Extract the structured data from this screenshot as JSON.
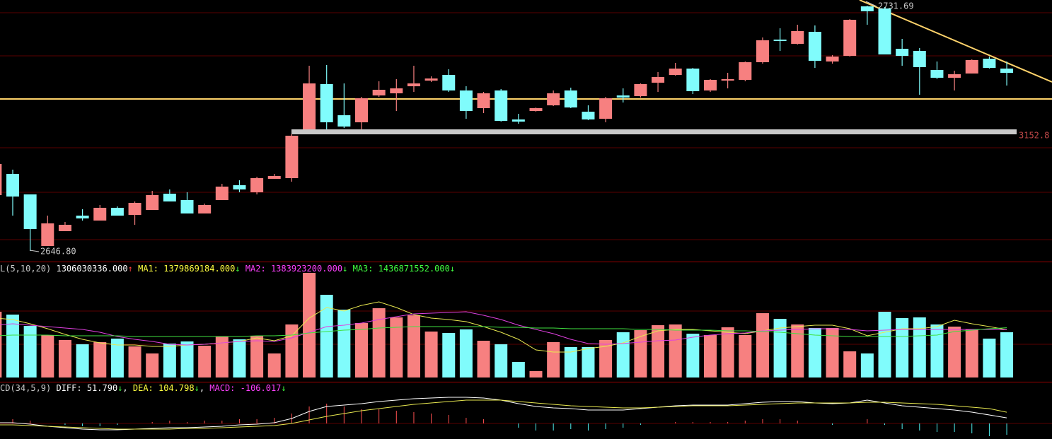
{
  "chart_data": [
    {
      "type": "candlestick",
      "up_color": "#f78080",
      "down_color": "#80fcfc",
      "ylim": [
        2643.13,
        2733.65
      ],
      "open": [
        2666.13,
        2673.47,
        2666.37,
        2648.52,
        2653.65,
        2659.03,
        2657.32,
        2661.73,
        2659.28,
        2660.99,
        2666.62,
        2664.42,
        2659.77,
        2664.42,
        2669.55,
        2667.11,
        2671.76,
        2672.0,
        2688.88,
        2704.54,
        2693.77,
        2691.33,
        2700.62,
        2701.36,
        2703.8,
        2705.76,
        2707.72,
        2702.34,
        2696.22,
        2702.34,
        2692.31,
        2695.24,
        2697.2,
        2702.34,
        2695.0,
        2692.55,
        2700.62,
        2700.38,
        2705.03,
        2707.72,
        2709.92,
        2702.34,
        2705.76,
        2706.01,
        2712.12,
        2719.95,
        2718.48,
        2722.64,
        2712.37,
        2714.32,
        2731.45,
        2730.71,
        2716.77,
        2716.04,
        2709.43,
        2706.74,
        2708.21,
        2713.34,
        2709.92
      ],
      "close": [
        2676.89,
        2665.64,
        2654.39,
        2656.34,
        2655.85,
        2658.06,
        2661.73,
        2659.03,
        2663.44,
        2666.13,
        2663.93,
        2659.77,
        2662.7,
        2669.07,
        2668.09,
        2672.0,
        2672.73,
        2686.68,
        2704.78,
        2691.33,
        2689.86,
        2699.65,
        2702.58,
        2703.07,
        2704.78,
        2706.49,
        2702.34,
        2695.24,
        2701.36,
        2691.82,
        2691.57,
        2696.22,
        2701.36,
        2696.46,
        2692.31,
        2699.65,
        2699.89,
        2704.54,
        2706.98,
        2709.92,
        2702.09,
        2706.01,
        2706.25,
        2712.12,
        2719.71,
        2719.46,
        2722.89,
        2712.61,
        2714.08,
        2726.8,
        2729.74,
        2714.81,
        2714.32,
        2710.41,
        2706.74,
        2707.96,
        2712.86,
        2710.16,
        2708.45
      ],
      "low": [
        2666.13,
        2659.03,
        2646.8,
        2648.52,
        2653.65,
        2657.32,
        2657.32,
        2659.03,
        2655.85,
        2660.99,
        2663.93,
        2659.77,
        2659.77,
        2664.42,
        2667.11,
        2666.37,
        2671.76,
        2670.78,
        2688.88,
        2688.88,
        2689.37,
        2688.88,
        2700.13,
        2695.24,
        2701.85,
        2705.27,
        2701.85,
        2692.55,
        2694.51,
        2691.57,
        2690.84,
        2695.0,
        2696.95,
        2696.22,
        2692.06,
        2691.33,
        2698.18,
        2699.89,
        2701.85,
        2707.47,
        2701.11,
        2701.85,
        2703.07,
        2705.52,
        2711.63,
        2716.04,
        2718.24,
        2710.16,
        2711.63,
        2714.08,
        2725.09,
        2714.81,
        2710.9,
        2700.87,
        2706.25,
        2702.34,
        2708.21,
        2709.92,
        2704.05
      ],
      "high": [
        2676.89,
        2674.94,
        2666.37,
        2659.03,
        2656.83,
        2661.24,
        2662.7,
        2662.22,
        2663.93,
        2667.6,
        2668.09,
        2667.11,
        2663.19,
        2670.04,
        2671.27,
        2672.49,
        2673.47,
        2687.17,
        2710.9,
        2711.14,
        2704.78,
        2700.13,
        2705.52,
        2706.25,
        2710.9,
        2707.23,
        2709.68,
        2703.8,
        2701.85,
        2702.83,
        2694.26,
        2696.46,
        2702.34,
        2703.31,
        2697.2,
        2700.13,
        2703.07,
        2704.78,
        2708.7,
        2711.88,
        2710.16,
        2706.25,
        2708.45,
        2712.37,
        2720.68,
        2723.86,
        2725.09,
        2724.84,
        2714.57,
        2727.04,
        2731.69,
        2731.2,
        2720.19,
        2717.01,
        2712.37,
        2709.19,
        2713.1,
        2714.08,
        2712.37
      ],
      "annotations": [
        {
          "text": "2731.69",
          "color": "#c8c8c8"
        },
        {
          "text": "2646.80",
          "color": "#c8c8c8"
        },
        {
          "text": "3152.8",
          "color": "#c04848"
        }
      ]
    },
    {
      "type": "bar",
      "header": [
        {
          "text": "L(5,10,20) ",
          "color": "#c8c8c8"
        },
        {
          "text": "1306030336.000",
          "color": "#ffffff"
        },
        {
          "text": "↑",
          "color": "#ff4040"
        },
        {
          "text": " MA1: 1379869184.000",
          "color": "#ffff40"
        },
        {
          "text": "↓",
          "color": "#40ff40"
        },
        {
          "text": " MA2: 1383923200.000",
          "color": "#ff40ff"
        },
        {
          "text": "↓",
          "color": "#40ff40"
        },
        {
          "text": " MA3: 1436871552.000",
          "color": "#40ff40"
        },
        {
          "text": "↓",
          "color": "#40ff40"
        }
      ],
      "ylim": [
        0,
        3326830000
      ],
      "values": [
        1898000000.0,
        1816000000.0,
        1490000000.0,
        1225000000.0,
        1082000000.0,
        959000000.0,
        1021000000.0,
        1123000000.0,
        898000000.0,
        694000000.0,
        980000000.0,
        1041000000.0,
        918000000.0,
        1184000000.0,
        1102000000.0,
        1204000000.0,
        694000000.0,
        1531000000.0,
        3021000000.0,
        2388000000.0,
        1959000000.0,
        1572000000.0,
        2000000000.0,
        1735000000.0,
        1796000000.0,
        1327000000.0,
        1286000000.0,
        1388000000.0,
        1061000000.0,
        959000000.0,
        449000000.0,
        184000000.0,
        1021000000.0,
        878000000.0,
        878000000.0,
        1082000000.0,
        1306000000.0,
        1367000000.0,
        1510000000.0,
        1531000000.0,
        1265000000.0,
        1225000000.0,
        1449000000.0,
        1225000000.0,
        1857000000.0,
        1694000000.0,
        1531000000.0,
        1429000000.0,
        1429000000.0,
        755000000.0,
        694000000.0,
        1898000000.0,
        1714000000.0,
        1735000000.0,
        1531000000.0,
        1469000000.0,
        1388000000.0,
        1123000000.0,
        1306030336
      ],
      "lines": [
        {
          "color": "#e8e850",
          "values": [
            1714000000.0,
            1674000000.0,
            1551000000.0,
            1408000000.0,
            1245000000.0,
            1102000000.0,
            1000000000.0,
            939000000.0,
            939000000.0,
            898000000.0,
            898000000.0,
            939000000.0,
            959000000.0,
            1000000000.0,
            1041000000.0,
            1143000000.0,
            1061000000.0,
            1204000000.0,
            1714000000.0,
            2021000000.0,
            1919000000.0,
            2082000000.0,
            2184000000.0,
            2021000000.0,
            1816000000.0,
            1714000000.0,
            1674000000.0,
            1612000000.0,
            1470000000.0,
            1306000000.0,
            1102000000.0,
            796000000.0,
            735000000.0,
            735000000.0,
            837000000.0,
            898000000.0,
            1000000000.0,
            1184000000.0,
            1347000000.0,
            1388000000.0,
            1388000000.0,
            1347000000.0,
            1306000000.0,
            1265000000.0,
            1347000000.0,
            1429000000.0,
            1470000000.0,
            1510000000.0,
            1510000000.0,
            1408000000.0,
            1204000000.0,
            1306000000.0,
            1408000000.0,
            1408000000.0,
            1470000000.0,
            1653000000.0,
            1551000000.0,
            1470000000.0,
            1379869184
          ]
        },
        {
          "color": "#e040e0",
          "values": [
            1510000000.0,
            1551000000.0,
            1510000000.0,
            1470000000.0,
            1429000000.0,
            1388000000.0,
            1306000000.0,
            1184000000.0,
            1102000000.0,
            1041000000.0,
            959000000.0,
            939000000.0,
            959000000.0,
            1000000000.0,
            1041000000.0,
            1061000000.0,
            1041000000.0,
            1143000000.0,
            1306000000.0,
            1470000000.0,
            1510000000.0,
            1572000000.0,
            1674000000.0,
            1755000000.0,
            1837000000.0,
            1857000000.0,
            1878000000.0,
            1898000000.0,
            1796000000.0,
            1674000000.0,
            1510000000.0,
            1388000000.0,
            1265000000.0,
            1102000000.0,
            980000000.0,
            959000000.0,
            980000000.0,
            1021000000.0,
            1061000000.0,
            1082000000.0,
            1163000000.0,
            1225000000.0,
            1265000000.0,
            1286000000.0,
            1347000000.0,
            1367000000.0,
            1388000000.0,
            1408000000.0,
            1408000000.0,
            1388000000.0,
            1347000000.0,
            1367000000.0,
            1388000000.0,
            1388000000.0,
            1388000000.0,
            1388000000.0,
            1388000000.0,
            1388000000.0,
            1383923200
          ]
        },
        {
          "color": "#40e040",
          "values": [
            1204000000.0,
            1225000000.0,
            1225000000.0,
            1225000000.0,
            1204000000.0,
            1204000000.0,
            1204000000.0,
            1204000000.0,
            1184000000.0,
            1184000000.0,
            1184000000.0,
            1184000000.0,
            1184000000.0,
            1184000000.0,
            1184000000.0,
            1204000000.0,
            1204000000.0,
            1225000000.0,
            1286000000.0,
            1327000000.0,
            1367000000.0,
            1388000000.0,
            1429000000.0,
            1449000000.0,
            1470000000.0,
            1470000000.0,
            1470000000.0,
            1470000000.0,
            1470000000.0,
            1449000000.0,
            1449000000.0,
            1429000000.0,
            1429000000.0,
            1408000000.0,
            1408000000.0,
            1408000000.0,
            1408000000.0,
            1388000000.0,
            1388000000.0,
            1367000000.0,
            1367000000.0,
            1367000000.0,
            1347000000.0,
            1347000000.0,
            1327000000.0,
            1306000000.0,
            1265000000.0,
            1225000000.0,
            1204000000.0,
            1184000000.0,
            1184000000.0,
            1184000000.0,
            1184000000.0,
            1204000000.0,
            1225000000.0,
            1327000000.0,
            1367000000.0,
            1408000000.0,
            1436871552
          ]
        }
      ]
    },
    {
      "type": "macd",
      "header": [
        {
          "text": "CD(34,5,9) ",
          "color": "#c8c8c8"
        },
        {
          "text": "DIFF: 51.790",
          "color": "#ffffff"
        },
        {
          "text": "↓",
          "color": "#40ff40"
        },
        {
          "text": ", ",
          "color": "#ffffff"
        },
        {
          "text": "DEA: 104.798",
          "color": "#ffff40"
        },
        {
          "text": "↓",
          "color": "#40ff40"
        },
        {
          "text": ", ",
          "color": "#ffffff"
        },
        {
          "text": "MACD: -106.017",
          "color": "#ff40ff"
        },
        {
          "text": "↓",
          "color": "#40ff40"
        }
      ],
      "ylim": [
        -145.2,
        382.8
      ],
      "up_color": "#ff5050",
      "down_color": "#50f0f0",
      "lines": [
        {
          "color": "#ffffff",
          "values": [
            6.6,
            6.6,
            -6.6,
            -26.4,
            -39.6,
            -52.8,
            -59.4,
            -59.4,
            -52.8,
            -46.2,
            -39.6,
            -39.6,
            -33,
            -26.4,
            -13.2,
            -6.6,
            6.6,
            46.2,
            112.2,
            158.4,
            171.6,
            184.8,
            204.6,
            217.8,
            231,
            237.6,
            244.2,
            244.2,
            237.6,
            217.8,
            184.8,
            158.4,
            145.2,
            138.6,
            125.4,
            125.4,
            125.4,
            138.6,
            151.8,
            165,
            171.6,
            171.6,
            171.6,
            184.8,
            198,
            204.6,
            204.6,
            191.4,
            184.8,
            191.4,
            217.8,
            191.4,
            165,
            151.8,
            138.6,
            125.4,
            105.6,
            79.2,
            51.79
          ]
        },
        {
          "color": "#e8e850",
          "values": [
            -13.2,
            -13.2,
            -19.8,
            -26.4,
            -33,
            -39.6,
            -46.2,
            -52.8,
            -52.8,
            -52.8,
            -52.8,
            -46.2,
            -46.2,
            -39.6,
            -33,
            -26.4,
            -19.8,
            0,
            33,
            66,
            92.4,
            118.8,
            138.6,
            158.4,
            178.2,
            191.4,
            204.6,
            217.8,
            217.8,
            217.8,
            204.6,
            191.4,
            178.2,
            165,
            158.4,
            151.8,
            145.2,
            145.2,
            151.8,
            158.4,
            165,
            165,
            165,
            171.6,
            178.2,
            184.8,
            191.4,
            191.4,
            191.4,
            191.4,
            198,
            198,
            191.4,
            184.8,
            178.2,
            165,
            151.8,
            138.6,
            104.798
          ]
        }
      ],
      "values": [
        39.6,
        39.6,
        26.4,
        0,
        -13.2,
        -26.4,
        -26.4,
        -13.2,
        0,
        13.2,
        26.4,
        13.2,
        26.4,
        26.4,
        39.6,
        39.6,
        52.8,
        92.4,
        158.4,
        184.8,
        158.4,
        132,
        132,
        118.8,
        105.6,
        92.4,
        79.2,
        52.8,
        39.6,
        0,
        -39.6,
        -66,
        -66,
        -52.8,
        -66,
        -52.8,
        -39.6,
        -13.2,
        0,
        13.2,
        13.2,
        13.2,
        13.2,
        26.4,
        39.6,
        39.6,
        26.4,
        0,
        -13.2,
        0,
        39.6,
        -13.2,
        -52.8,
        -66,
        -79.2,
        -79.2,
        -92.4,
        -118.8,
        -106.017
      ]
    }
  ]
}
